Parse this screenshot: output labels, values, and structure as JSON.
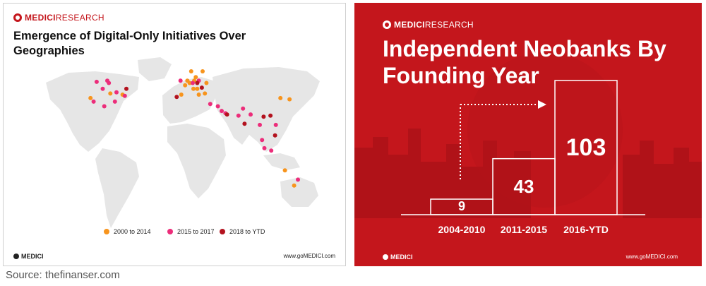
{
  "left_panel": {
    "brand_bold": "MEDICI",
    "brand_thin": "RESEARCH",
    "title": "Emergence of Digital-Only Initiatives Over Geographies",
    "footer_brand": "MEDICI",
    "footer_url": "www.goMEDICI.com"
  },
  "right_panel": {
    "brand_bold": "MEDICI",
    "brand_thin": "RESEARCH",
    "title": "Independent Neobanks By Founding Year",
    "footer_brand": "MEDICI",
    "footer_url": "www.goMEDICI.com"
  },
  "source_text": "Source: thefinanser.com",
  "colors": {
    "medici_red": "#c4161c",
    "orange": "#f7941d",
    "pink": "#ec2d7a",
    "dark_red": "#b3121e",
    "map_gray": "#e6e6e6"
  },
  "chart_data": [
    {
      "type": "scatter",
      "title": "Emergence of Digital-Only Initiatives Over Geographies",
      "legend_position": "bottom",
      "series": [
        {
          "name": "2000 to 2014",
          "color": "#f7941d",
          "points": [
            [
              -122,
              37
            ],
            [
              -96,
              41
            ],
            [
              -80,
              40
            ],
            [
              -3,
              40
            ],
            [
              8,
              50
            ],
            [
              13,
              45
            ],
            [
              2,
              48
            ],
            [
              20,
              40
            ],
            [
              16,
              55
            ],
            [
              25,
              60
            ],
            [
              10,
              60
            ],
            [
              14,
              52
            ],
            [
              30,
              50
            ],
            [
              18,
              45
            ],
            [
              5,
              52
            ],
            [
              28,
              41
            ],
            [
              139,
              36
            ],
            [
              133,
              -25
            ],
            [
              145,
              -38
            ],
            [
              127,
              37
            ]
          ]
        },
        {
          "name": "2015 to 2017",
          "color": "#ec2d7a",
          "points": [
            [
              -100,
              52
            ],
            [
              -114,
              51
            ],
            [
              -106,
              45
            ],
            [
              -88,
              42
            ],
            [
              -118,
              34
            ],
            [
              -77,
              39
            ],
            [
              -104,
              30
            ],
            [
              -90,
              34
            ],
            [
              -98,
              50
            ],
            [
              -4,
              52
            ],
            [
              20,
              52
            ],
            [
              12,
              50
            ],
            [
              35,
              32
            ],
            [
              45,
              30
            ],
            [
              55,
              24
            ],
            [
              50,
              26
            ],
            [
              72,
              22
            ],
            [
              78,
              28
            ],
            [
              88,
              23
            ],
            [
              100,
              14
            ],
            [
              103,
              1
            ],
            [
              106,
              -6
            ],
            [
              121,
              14
            ],
            [
              115,
              -8
            ],
            [
              150,
              -33
            ]
          ]
        },
        {
          "name": "2018 to YTD",
          "color": "#b3121e",
          "points": [
            [
              -75,
              45
            ],
            [
              -9,
              38
            ],
            [
              18,
              50
            ],
            [
              24,
              46
            ],
            [
              57,
              23
            ],
            [
              80,
              15
            ],
            [
              105,
              21
            ],
            [
              114,
              22
            ],
            [
              120,
              5
            ]
          ]
        }
      ]
    },
    {
      "type": "bar",
      "title": "Independent Neobanks By Founding Year",
      "categories": [
        "2004-2010",
        "2011-2015",
        "2016-YTD"
      ],
      "values": [
        9,
        43,
        103
      ],
      "data_labels": [
        "9",
        "43",
        "103"
      ]
    }
  ]
}
